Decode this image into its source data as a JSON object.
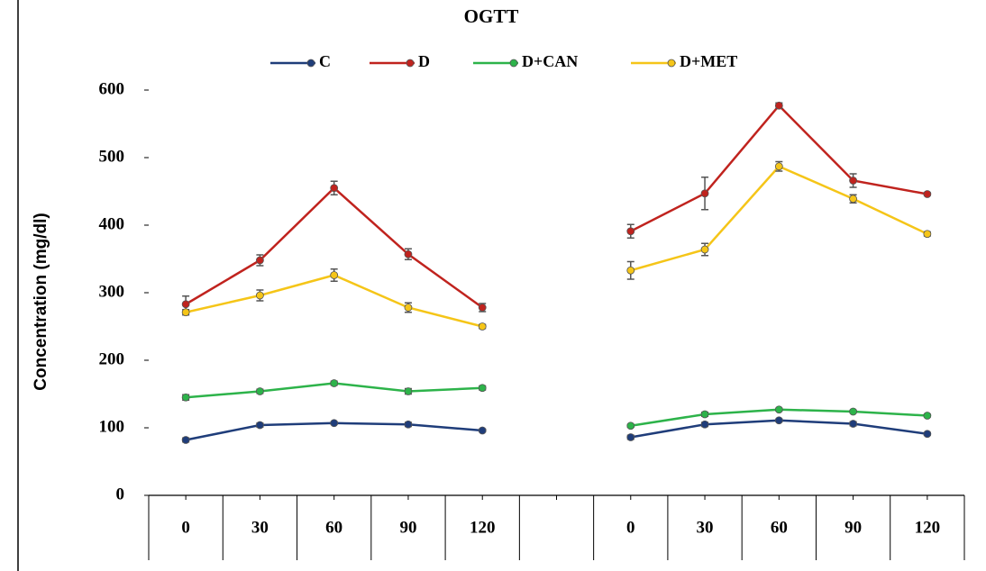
{
  "chart_data": {
    "type": "line",
    "title": "OGTT",
    "y_label": "Concentration (mg/dl)",
    "categories": [
      "0",
      "30",
      "60",
      "90",
      "120",
      null,
      "0",
      "30",
      "60",
      "90",
      "120"
    ],
    "ylim": [
      0,
      600
    ],
    "yticks": [
      0,
      100,
      200,
      300,
      400,
      500,
      600
    ],
    "series": [
      {
        "name": "C",
        "color": "#1f3d7a",
        "values": [
          82,
          104,
          107,
          105,
          96,
          null,
          86,
          105,
          111,
          106,
          91
        ],
        "errors": [
          3,
          3,
          2,
          3,
          2,
          null,
          3,
          3,
          2,
          3,
          2
        ]
      },
      {
        "name": "D",
        "color": "#c0231e",
        "values": [
          283,
          348,
          455,
          357,
          278,
          null,
          391,
          447,
          577,
          466,
          446
        ],
        "errors": [
          12,
          8,
          10,
          8,
          6,
          null,
          10,
          24,
          4,
          10,
          2
        ]
      },
      {
        "name": "D+CAN",
        "color": "#2db34a",
        "values": [
          145,
          154,
          166,
          154,
          159,
          null,
          103,
          120,
          127,
          124,
          118
        ],
        "errors": [
          4,
          3,
          3,
          4,
          3,
          null,
          2,
          3,
          2,
          2,
          2
        ]
      },
      {
        "name": "D+MET",
        "color": "#f5c518",
        "values": [
          271,
          296,
          326,
          278,
          250,
          null,
          333,
          364,
          487,
          439,
          387
        ],
        "errors": [
          4,
          8,
          9,
          7,
          3,
          null,
          13,
          9,
          7,
          6,
          3
        ]
      }
    ]
  }
}
